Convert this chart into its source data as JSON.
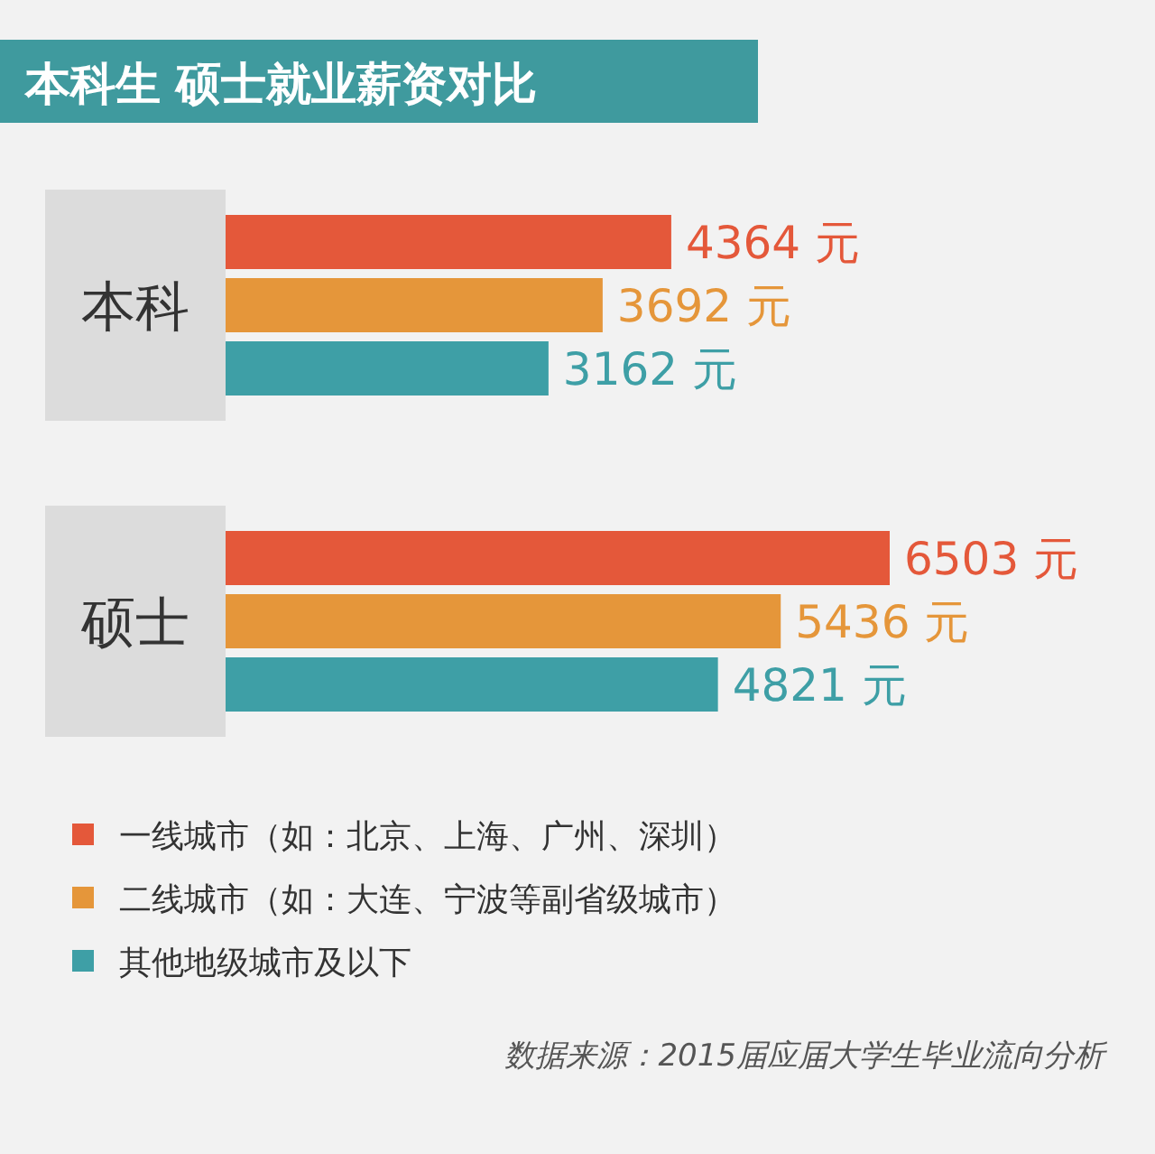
{
  "chart_data": {
    "type": "bar",
    "orientation": "horizontal",
    "title": "本科生 硕士就业薪资对比",
    "categories": [
      "本科",
      "硕士"
    ],
    "series": [
      {
        "name": "一线城市（如：北京、上海、广州、深圳）",
        "color": "#e4583a",
        "values": [
          4364,
          6503
        ],
        "value_labels": [
          "4364 元",
          "6503 元"
        ]
      },
      {
        "name": "二线城市（如：大连、宁波等副省级城市）",
        "color": "#e5963a",
        "values": [
          3692,
          5436
        ],
        "value_labels": [
          "3692 元",
          "5436 元"
        ]
      },
      {
        "name": "其他地级城市及以下",
        "color": "#3e9fa6",
        "values": [
          3162,
          4821
        ],
        "value_labels": [
          "3162 元",
          "4821 元"
        ]
      }
    ],
    "legend": "bottom",
    "annotations": [
      "数据来源：2015届应届大学生毕业流向分析"
    ]
  }
}
